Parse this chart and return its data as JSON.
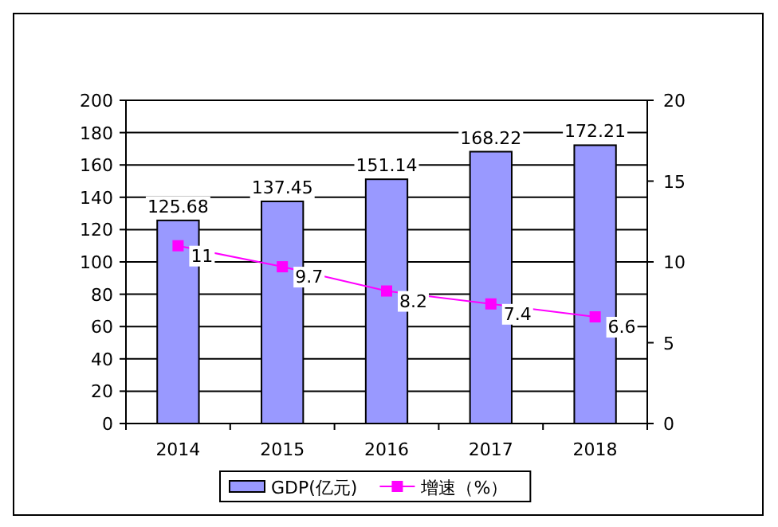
{
  "chart_data": {
    "type": "bar",
    "categories": [
      "2014",
      "2015",
      "2016",
      "2017",
      "2018"
    ],
    "series": [
      {
        "name": "GDP(亿元)",
        "color": "#9999ff",
        "values": [
          125.68,
          137.45,
          151.14,
          168.22,
          172.21
        ]
      },
      {
        "name": "增速（%）",
        "type": "line",
        "axis": "y2",
        "color": "#ff00ff",
        "values": [
          11,
          9.7,
          8.2,
          7.4,
          6.6
        ]
      }
    ],
    "ylim": [
      0,
      200
    ],
    "yticks": [
      0,
      20,
      40,
      60,
      80,
      100,
      120,
      140,
      160,
      180,
      200
    ],
    "y2lim": [
      0,
      20
    ],
    "y2ticks": [
      0,
      5,
      10,
      15,
      20
    ],
    "grid": "y",
    "legend": "bottom",
    "data_labels": true,
    "marker": "square",
    "line_style": "solid"
  }
}
